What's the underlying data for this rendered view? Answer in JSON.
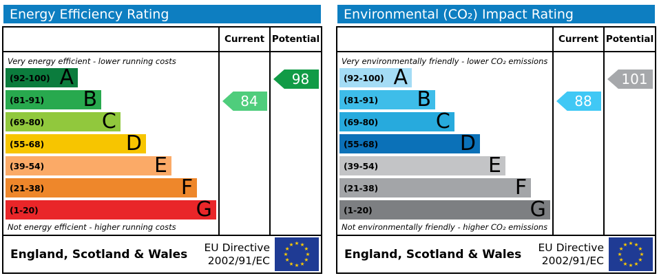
{
  "colors": {
    "header_bar": "#0d7ec1",
    "flag_blue": "#1f3b94",
    "star_yellow": "#ffcc00",
    "border": "#000000"
  },
  "panels": [
    {
      "title": "Energy Efficiency Rating",
      "header": {
        "current": "Current",
        "potential": "Potential"
      },
      "top_note": "Very energy efficient - lower running costs",
      "bottom_note": "Not energy efficient - higher running costs",
      "bands": [
        {
          "range": "(92-100)",
          "letter": "A",
          "color": "#0b7c3d",
          "width_pct": 34
        },
        {
          "range": "(81-91)",
          "letter": "B",
          "color": "#28a94e",
          "width_pct": 45
        },
        {
          "range": "(69-80)",
          "letter": "C",
          "color": "#91c83d",
          "width_pct": 54
        },
        {
          "range": "(55-68)",
          "letter": "D",
          "color": "#f7c500",
          "width_pct": 66
        },
        {
          "range": "(39-54)",
          "letter": "E",
          "color": "#fbaa67",
          "width_pct": 78
        },
        {
          "range": "(21-38)",
          "letter": "F",
          "color": "#ee872b",
          "width_pct": 90
        },
        {
          "range": "(1-20)",
          "letter": "G",
          "color": "#e92629",
          "width_pct": 99
        }
      ],
      "current": {
        "value": "84",
        "color": "#4fcd7c",
        "band_index": 1
      },
      "potential": {
        "value": "98",
        "color": "#119b46",
        "band_index": 0
      },
      "footer": {
        "region": "England, Scotland & Wales",
        "directive_line1": "EU Directive",
        "directive_line2": "2002/91/EC"
      }
    },
    {
      "title": "Environmental (CO₂) Impact Rating",
      "header": {
        "current": "Current",
        "potential": "Potential"
      },
      "top_note": "Very environmentally friendly - lower CO₂ emissions",
      "bottom_note": "Not environmentally friendly - higher CO₂ emissions",
      "bands": [
        {
          "range": "(92-100)",
          "letter": "A",
          "color": "#a4dcf5",
          "width_pct": 34
        },
        {
          "range": "(81-91)",
          "letter": "B",
          "color": "#3ebde9",
          "width_pct": 45
        },
        {
          "range": "(69-80)",
          "letter": "C",
          "color": "#27aadd",
          "width_pct": 54
        },
        {
          "range": "(55-68)",
          "letter": "D",
          "color": "#0b71b8",
          "width_pct": 66
        },
        {
          "range": "(39-54)",
          "letter": "E",
          "color": "#c3c4c6",
          "width_pct": 78
        },
        {
          "range": "(21-38)",
          "letter": "F",
          "color": "#a3a5a8",
          "width_pct": 90
        },
        {
          "range": "(1-20)",
          "letter": "G",
          "color": "#7d7f82",
          "width_pct": 99
        }
      ],
      "current": {
        "value": "88",
        "color": "#40c8f5",
        "band_index": 1
      },
      "potential": {
        "value": "101",
        "color": "#a6a8ab",
        "band_index": 0
      },
      "footer": {
        "region": "England, Scotland & Wales",
        "directive_line1": "EU Directive",
        "directive_line2": "2002/91/EC"
      }
    }
  ],
  "chart_data": [
    {
      "type": "bar",
      "title": "Energy Efficiency Rating",
      "categories": [
        "A (92-100)",
        "B (81-91)",
        "C (69-80)",
        "D (55-68)",
        "E (39-54)",
        "F (21-38)",
        "G (1-20)"
      ],
      "series": [
        {
          "name": "Current",
          "value": 84,
          "band": "B"
        },
        {
          "name": "Potential",
          "value": 98,
          "band": "A"
        }
      ],
      "scale": [
        1,
        100
      ],
      "top_note": "Very energy efficient - lower running costs",
      "bottom_note": "Not energy efficient - higher running costs",
      "footer": "England, Scotland & Wales — EU Directive 2002/91/EC"
    },
    {
      "type": "bar",
      "title": "Environmental (CO₂) Impact Rating",
      "categories": [
        "A (92-100)",
        "B (81-91)",
        "C (69-80)",
        "D (55-68)",
        "E (39-54)",
        "F (21-38)",
        "G (1-20)"
      ],
      "series": [
        {
          "name": "Current",
          "value": 88,
          "band": "B"
        },
        {
          "name": "Potential",
          "value": 101,
          "band": "A"
        }
      ],
      "scale": [
        1,
        100
      ],
      "top_note": "Very environmentally friendly - lower CO₂ emissions",
      "bottom_note": "Not environmentally friendly - higher CO₂ emissions",
      "footer": "England, Scotland & Wales — EU Directive 2002/91/EC"
    }
  ]
}
